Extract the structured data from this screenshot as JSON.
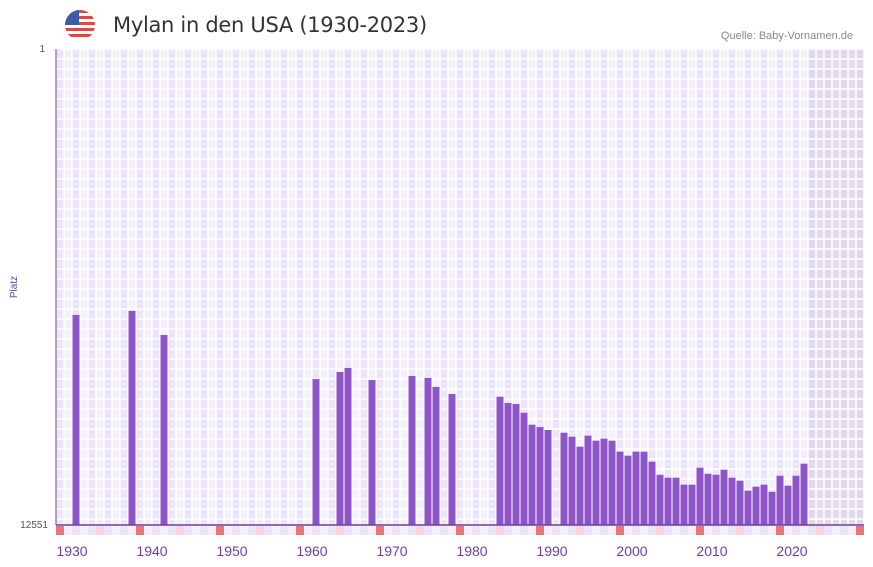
{
  "header": {
    "title": "Mylan in den USA (1930-2023)",
    "source": "Quelle: Baby-Vornamen.de",
    "flag_icon": "us-flag-icon"
  },
  "chart_data": {
    "type": "bar",
    "title": "Mylan in den USA (1930-2023)",
    "xlabel": "",
    "ylabel": "Platz",
    "y_scale": "log-reversed",
    "ylim": [
      12551,
      1
    ],
    "y_tick_labels": [
      "1",
      "12551"
    ],
    "x_range": [
      1928,
      2029
    ],
    "x_tick_labels": [
      "1930",
      "1940",
      "1950",
      "1960",
      "1970",
      "1980",
      "1990",
      "2000",
      "2010",
      "2020"
    ],
    "bar_color": "#8e55c9",
    "years": [
      1930,
      1937,
      1941,
      1960,
      1963,
      1964,
      1967,
      1972,
      1974,
      1975,
      1977,
      1983,
      1984,
      1985,
      1986,
      1987,
      1988,
      1989,
      1991,
      1992,
      1993,
      1994,
      1995,
      1996,
      1997,
      1998,
      1999,
      2000,
      2001,
      2002,
      2003,
      2004,
      2005,
      2006,
      2007,
      2008,
      2009,
      2010,
      2011,
      2012,
      2013,
      2014,
      2015,
      2016,
      2017,
      2018,
      2019,
      2020,
      2021
    ],
    "values": [
      195,
      180,
      290,
      695,
      604,
      558,
      709,
      654,
      680,
      813,
      935,
      986,
      1117,
      1140,
      1355,
      1718,
      1800,
      1909,
      2014,
      2180,
      2658,
      2136,
      2360,
      2265,
      2360,
      2934,
      3177,
      2934,
      2934,
      3580,
      4634,
      4915,
      4915,
      5645,
      5645,
      4030,
      4540,
      4634,
      4190,
      4915,
      5215,
      6360,
      5870,
      5645,
      6490,
      4725,
      5760,
      4725,
      3720
    ],
    "grid": true,
    "shaded_from_year": 2022
  }
}
